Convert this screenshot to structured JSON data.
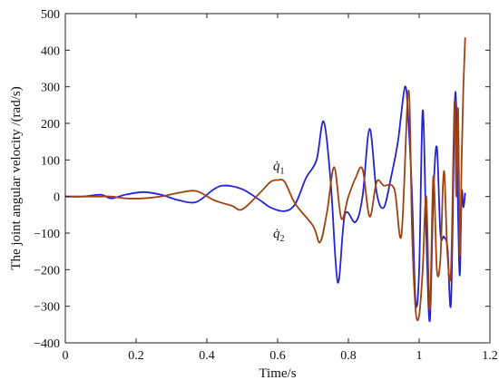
{
  "chart_data": {
    "type": "line",
    "title": "",
    "xlabel": "Time/s",
    "ylabel": "The joint angular velocity /(rad/s)",
    "xlim": [
      0,
      1.2
    ],
    "ylim": [
      -400,
      500
    ],
    "xticks": [
      0,
      0.2,
      0.4,
      0.6,
      0.8,
      1,
      1.2
    ],
    "xtick_labels": [
      "0",
      "0.2",
      "0.4",
      "0.6",
      "0.8",
      "1",
      "1.2"
    ],
    "yticks": [
      -400,
      -300,
      -200,
      -100,
      0,
      100,
      200,
      300,
      400,
      500
    ],
    "ytick_labels": [
      "−400",
      "−300",
      "−200",
      "−100",
      "0",
      "100",
      "200",
      "300",
      "400",
      "500"
    ],
    "grid": false,
    "legend": "none",
    "annotations": [
      {
        "id": "q1",
        "text": "q̇",
        "subscript": "1",
        "x": 0.6,
        "y": 85
      },
      {
        "id": "q2",
        "text": "q̇",
        "subscript": "2",
        "x": 0.6,
        "y": -100
      }
    ],
    "series": [
      {
        "color": "#2323d6",
        "x": [
          0,
          0.05,
          0.1,
          0.13,
          0.17,
          0.22,
          0.27,
          0.32,
          0.37,
          0.42,
          0.45,
          0.5,
          0.55,
          0.58,
          0.62,
          0.65,
          0.68,
          0.71,
          0.73,
          0.75,
          0.77,
          0.79,
          0.82,
          0.84,
          0.86,
          0.88,
          0.9,
          0.92,
          0.94,
          0.96,
          0.97,
          0.98,
          0.99,
          1.0,
          1.01,
          1.02,
          1.03,
          1.04,
          1.05,
          1.06,
          1.07,
          1.08,
          1.09,
          1.1,
          1.105,
          1.11,
          1.115,
          1.12,
          1.125,
          1.13
        ],
        "y": [
          0,
          0,
          5,
          -5,
          5,
          12,
          5,
          -10,
          -15,
          20,
          30,
          20,
          -10,
          -30,
          -40,
          -20,
          50,
          100,
          205,
          40,
          -235,
          -50,
          -70,
          0,
          185,
          10,
          -30,
          50,
          150,
          300,
          200,
          0,
          -290,
          -200,
          235,
          -100,
          -340,
          0,
          135,
          -100,
          -110,
          -140,
          -290,
          230,
          240,
          -50,
          -215,
          10,
          -30,
          10
        ]
      },
      {
        "color": "#a0420f",
        "x": [
          0,
          0.05,
          0.1,
          0.13,
          0.17,
          0.22,
          0.27,
          0.32,
          0.37,
          0.42,
          0.47,
          0.5,
          0.55,
          0.58,
          0.6,
          0.62,
          0.65,
          0.7,
          0.72,
          0.74,
          0.76,
          0.78,
          0.8,
          0.82,
          0.84,
          0.86,
          0.88,
          0.9,
          0.93,
          0.95,
          0.97,
          0.98,
          0.99,
          1.0,
          1.01,
          1.02,
          1.03,
          1.04,
          1.05,
          1.06,
          1.07,
          1.08,
          1.09,
          1.1,
          1.105,
          1.11,
          1.115,
          1.12,
          1.125,
          1.13
        ],
        "y": [
          0,
          0,
          0,
          0,
          -5,
          -5,
          0,
          10,
          15,
          -10,
          -25,
          -35,
          10,
          40,
          45,
          40,
          -20,
          -80,
          -125,
          -40,
          80,
          -60,
          0,
          50,
          75,
          -55,
          40,
          30,
          20,
          -105,
          290,
          -100,
          -310,
          -325,
          -200,
          0,
          -310,
          55,
          -200,
          -170,
          70,
          -160,
          -200,
          260,
          0,
          240,
          -160,
          100,
          300,
          435
        ]
      }
    ]
  }
}
